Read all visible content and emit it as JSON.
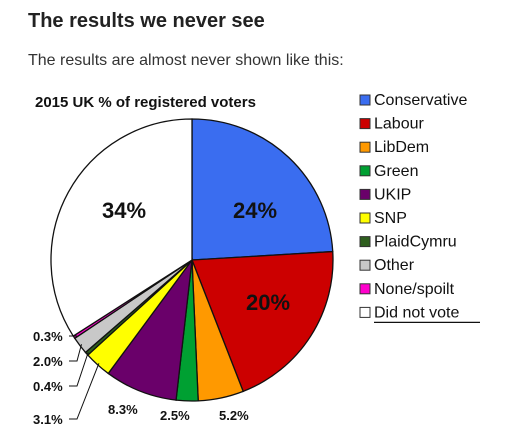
{
  "page": {
    "heading": "The results we never see",
    "subheading": "The results are almost never shown like this:"
  },
  "chart_data": {
    "type": "pie",
    "title": "2015 UK  % of registered voters",
    "slices": [
      {
        "name": "Conservative",
        "value": 24,
        "label": "24%",
        "color": "#3a6df0"
      },
      {
        "name": "Labour",
        "value": 20,
        "label": "20%",
        "color": "#cc0000"
      },
      {
        "name": "LibDem",
        "value": 5.2,
        "label": "5.2%",
        "color": "#ff9900"
      },
      {
        "name": "Green",
        "value": 2.5,
        "label": "2.5%",
        "color": "#00a032"
      },
      {
        "name": "UKIP",
        "value": 8.3,
        "label": "8.3%",
        "color": "#6a006a"
      },
      {
        "name": "SNP",
        "value": 3.1,
        "label": "3.1%",
        "color": "#ffff00"
      },
      {
        "name": "PlaidCymru",
        "value": 0.4,
        "label": "0.4%",
        "color": "#2e5e1e"
      },
      {
        "name": "Other",
        "value": 2.0,
        "label": "2.0%",
        "color": "#c8c8c8"
      },
      {
        "name": "None/spoilt",
        "value": 0.3,
        "label": "0.3%",
        "color": "#ff00cc"
      },
      {
        "name": "Did not vote",
        "value": 34,
        "label": "34%",
        "color": "#ffffff"
      }
    ],
    "legend_position": "right"
  }
}
